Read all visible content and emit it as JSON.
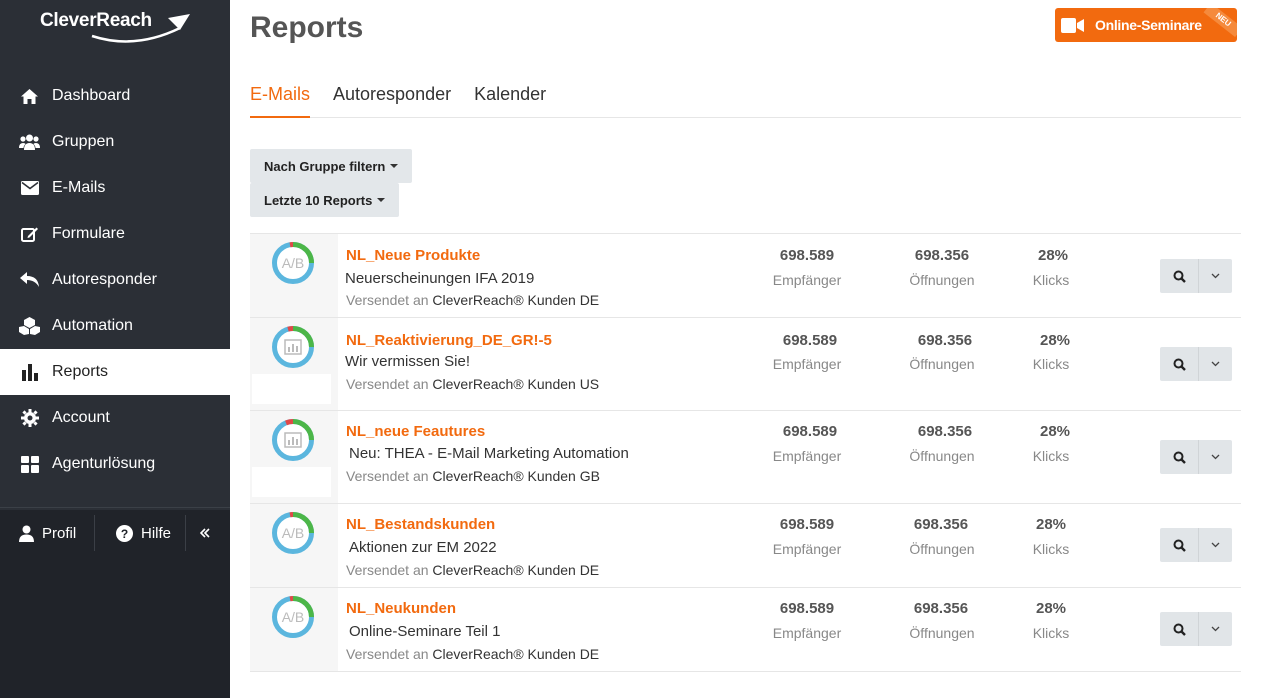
{
  "brand": {
    "name": "CleverReach",
    "accent": "#f26a0f",
    "sidebar_bg": "#2b2f36"
  },
  "sidebar": {
    "items": [
      {
        "label": "Dashboard",
        "icon": "home-icon"
      },
      {
        "label": "Gruppen",
        "icon": "users-icon"
      },
      {
        "label": "E-Mails",
        "icon": "envelope-icon"
      },
      {
        "label": "Formulare",
        "icon": "edit-icon"
      },
      {
        "label": "Autoresponder",
        "icon": "reply-icon"
      },
      {
        "label": "Automation",
        "icon": "cubes-icon"
      },
      {
        "label": "Reports",
        "icon": "bar-chart-icon",
        "active": true
      },
      {
        "label": "Account",
        "icon": "gear-icon"
      },
      {
        "label": "Agenturlösung",
        "icon": "grid-icon"
      }
    ],
    "bottom": {
      "profile_label": "Profil",
      "help_label": "Hilfe",
      "collapse_icon": "double-chevron-left-icon"
    }
  },
  "header": {
    "title": "Reports",
    "promo_label": "Online-Seminare",
    "promo_badge": "NEU"
  },
  "tabs": [
    {
      "label": "E-Mails",
      "active": true
    },
    {
      "label": "Autoresponder"
    },
    {
      "label": "Kalender"
    }
  ],
  "filters": {
    "group_filter_label": "Nach Gruppe filtern",
    "last_reports_label": "Letzte 10 Reports"
  },
  "reports": [
    {
      "name": "NL_Neue Produkte",
      "subject": "Neuerscheinungen IFA 2019",
      "sent_prefix": "Versendet an",
      "sent_to": "CleverReach® Kunden DE",
      "icon": "ab-test-icon",
      "recipients": "698.589",
      "recipients_label": "Empfänger",
      "opens": "698.356",
      "opens_label": "Öffnungen",
      "clicks": "28%",
      "clicks_label": "Klicks"
    },
    {
      "name": "NL_Reaktivierung_DE_GR!-5",
      "subject": "Wir vermissen Sie!",
      "sent_prefix": "Versendet an",
      "sent_to": "CleverReach® Kunden US",
      "icon": "report-chart-icon",
      "recipients": "698.589",
      "recipients_label": "Empfänger",
      "opens": "698.356",
      "opens_label": "Öffnungen",
      "clicks": "28%",
      "clicks_label": "Klicks"
    },
    {
      "name": "NL_neue Feautures",
      "subject": "Neu: THEA - E-Mail Marketing Automation",
      "sent_prefix": "Versendet an",
      "sent_to": "CleverReach® Kunden GB",
      "icon": "report-chart-icon",
      "recipients": "698.589",
      "recipients_label": "Empfänger",
      "opens": "698.356",
      "opens_label": "Öffnungen",
      "clicks": "28%",
      "clicks_label": "Klicks"
    },
    {
      "name": "NL_Bestandskunden",
      "subject": "Aktionen zur EM 2022",
      "sent_prefix": "Versendet an",
      "sent_to": "CleverReach® Kunden DE",
      "icon": "ab-test-icon",
      "recipients": "698.589",
      "recipients_label": "Empfänger",
      "opens": "698.356",
      "opens_label": "Öffnungen",
      "clicks": "28%",
      "clicks_label": "Klicks"
    },
    {
      "name": "NL_Neukunden",
      "subject": "Online-Seminare Teil 1",
      "sent_prefix": "Versendet an",
      "sent_to": "CleverReach® Kunden DE",
      "icon": "ab-test-icon",
      "recipients": "698.589",
      "recipients_label": "Empfänger",
      "opens": "698.356",
      "opens_label": "Öffnungen",
      "clicks": "28%",
      "clicks_label": "Klicks"
    }
  ]
}
